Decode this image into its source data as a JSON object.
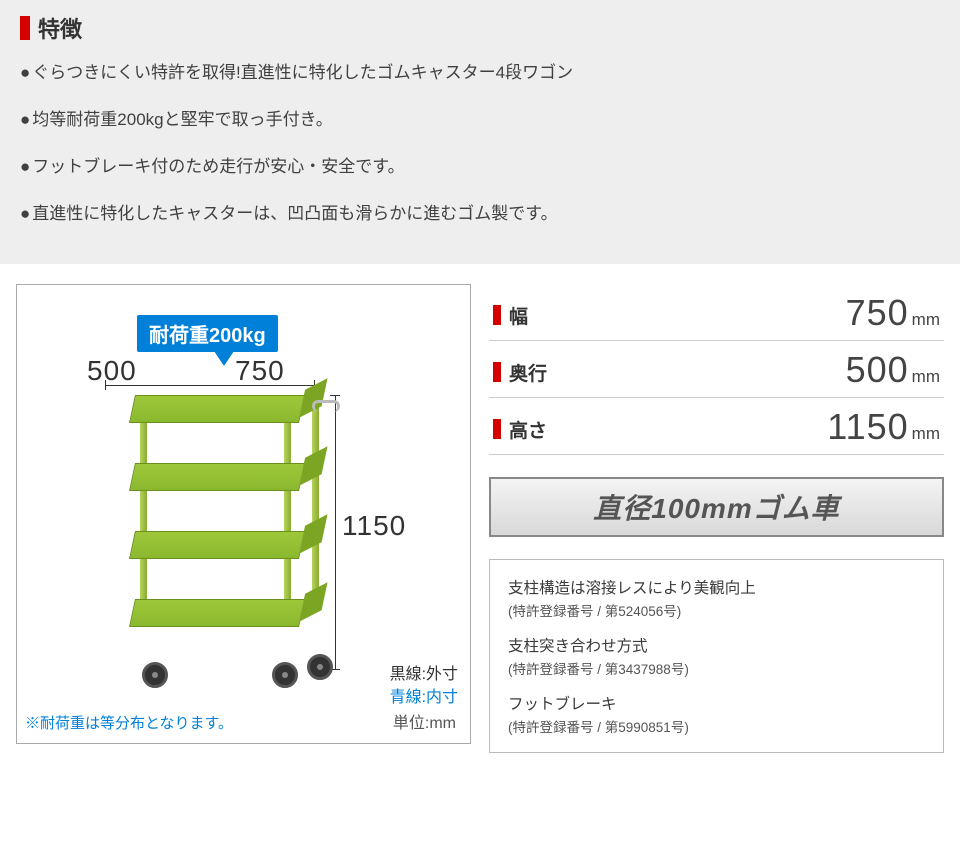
{
  "features": {
    "title": "特徴",
    "items": [
      "ぐらつきにくい特許を取得!直進性に特化したゴムキャスター4段ワゴン",
      "均等耐荷重200kgと堅牢で取っ手付き。",
      "フットブレーキ付のため走行が安心・安全です。",
      "直進性に特化したキャスターは、凹凸面も滑らかに進むゴム製です。"
    ]
  },
  "diagram": {
    "load_label": "耐荷重200kg",
    "dim_500": "500",
    "dim_750": "750",
    "dim_1150": "1150",
    "legend_black": "黒線:外寸",
    "legend_blue": "青線:内寸",
    "unit": "単位:mm",
    "note": "※耐荷重は等分布となります。",
    "colors": {
      "load_bg": "#0080d8",
      "wagon_green": "#8ab82e",
      "dim_text": "#333333"
    }
  },
  "specs": {
    "rows": [
      {
        "label": "幅",
        "value": "750",
        "unit": "mm"
      },
      {
        "label": "奥行",
        "value": "500",
        "unit": "mm"
      },
      {
        "label": "高さ",
        "value": "1150",
        "unit": "mm"
      }
    ],
    "wheel_banner": "直径100mmゴム車"
  },
  "patents": [
    {
      "title": "支柱構造は溶接レスにより美観向上",
      "number": "(特許登録番号 / 第524056号)"
    },
    {
      "title": "支柱突き合わせ方式",
      "number": "(特許登録番号 / 第3437988号)"
    },
    {
      "title": "フットブレーキ",
      "number": "(特許登録番号 / 第5990851号)"
    }
  ]
}
